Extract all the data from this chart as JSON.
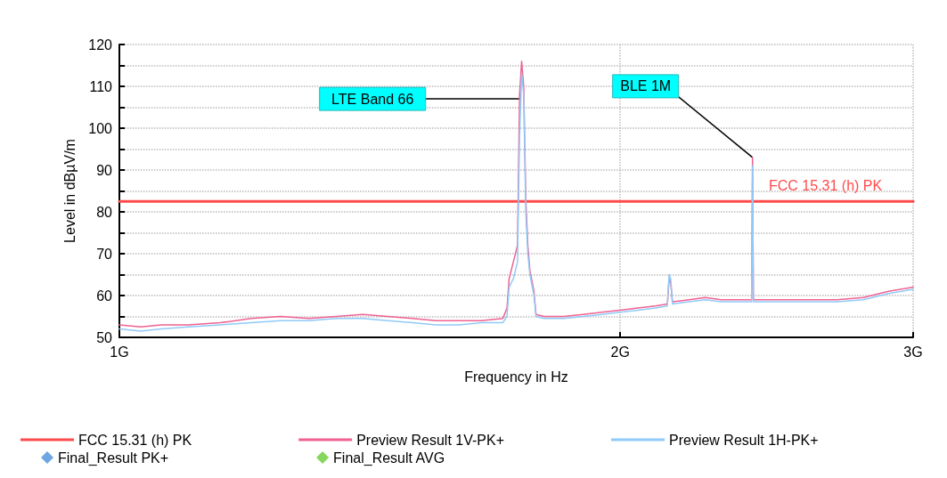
{
  "chart_data": {
    "type": "line",
    "xlabel": "Frequency in Hz",
    "ylabel": "Level in dBµV/m",
    "xlim": [
      1,
      3
    ],
    "xticks": [
      {
        "value": 1,
        "label": "1G"
      },
      {
        "value": 2,
        "label": "2G"
      },
      {
        "value": 3,
        "label": "3G"
      }
    ],
    "ylim": [
      50,
      120
    ],
    "yticks": [
      50,
      {
        "value": 55,
        "label": null
      },
      60,
      {
        "value": 65,
        "label": null
      },
      70,
      {
        "value": 75,
        "label": null
      },
      80,
      {
        "value": 85,
        "label": null
      },
      90,
      {
        "value": 95,
        "label": null
      },
      100,
      {
        "value": 105,
        "label": null
      },
      110,
      {
        "value": 115,
        "label": null
      },
      120
    ],
    "log": "x",
    "grid": true,
    "legend": "bottom",
    "line_style": "solid",
    "annotations": [
      {
        "text": "LTE Band 66",
        "x": 1.74,
        "y": 107
      },
      {
        "text": "BLE 1M",
        "x": 2.402,
        "y": 93
      }
    ],
    "series": [
      {
        "name": "FCC 15.31 (h) PK",
        "color": "#ff4b4b",
        "x": [
          1,
          3
        ],
        "values": [
          82.5,
          82.5
        ]
      },
      {
        "name": "Preview Result 1V-PK+",
        "color": "#f06292",
        "x": [
          1.0,
          1.03,
          1.06,
          1.1,
          1.15,
          1.2,
          1.25,
          1.3,
          1.35,
          1.4,
          1.45,
          1.5,
          1.55,
          1.6,
          1.65,
          1.7,
          1.71,
          1.715,
          1.725,
          1.735,
          1.74,
          1.745,
          1.75,
          1.755,
          1.76,
          1.765,
          1.775,
          1.78,
          1.8,
          1.85,
          1.9,
          1.95,
          2.0,
          2.05,
          2.1,
          2.135,
          2.14,
          2.145,
          2.15,
          2.2,
          2.25,
          2.3,
          2.35,
          2.399,
          2.402,
          2.405,
          2.45,
          2.5,
          2.6,
          2.7,
          2.8,
          2.9,
          3.0
        ],
        "values": [
          53,
          52.5,
          53,
          53,
          53.5,
          54.5,
          55,
          54.5,
          55,
          55.5,
          55,
          54.5,
          54,
          54,
          54,
          54.5,
          57,
          64,
          68,
          72,
          108,
          116,
          110,
          83,
          72,
          66,
          61,
          55.5,
          55,
          55,
          55.5,
          56,
          56.5,
          57,
          57.5,
          58,
          64,
          63,
          58.5,
          59,
          59.5,
          59,
          59,
          59,
          93,
          59,
          59,
          59,
          59,
          59,
          59.5,
          61,
          62
        ]
      },
      {
        "name": "Preview Result 1H-PK+",
        "color": "#90caf9",
        "x": [
          1.0,
          1.03,
          1.06,
          1.1,
          1.15,
          1.2,
          1.25,
          1.3,
          1.35,
          1.4,
          1.45,
          1.5,
          1.55,
          1.6,
          1.65,
          1.7,
          1.71,
          1.715,
          1.725,
          1.735,
          1.74,
          1.745,
          1.75,
          1.755,
          1.76,
          1.765,
          1.775,
          1.78,
          1.8,
          1.85,
          1.9,
          1.95,
          2.0,
          2.05,
          2.1,
          2.135,
          2.14,
          2.145,
          2.15,
          2.2,
          2.25,
          2.3,
          2.35,
          2.399,
          2.402,
          2.405,
          2.45,
          2.5,
          2.6,
          2.7,
          2.8,
          2.9,
          3.0
        ],
        "values": [
          52,
          51.5,
          52,
          52.5,
          53,
          53.5,
          54,
          54,
          54.5,
          54.5,
          54,
          53.5,
          53,
          53,
          53.5,
          53.5,
          55,
          62,
          64,
          68,
          98,
          113,
          108,
          80,
          70,
          65,
          60,
          55,
          54.5,
          54.5,
          55,
          55.5,
          56,
          56.5,
          57,
          57.5,
          65,
          64,
          58,
          58.5,
          59,
          58.5,
          58.5,
          58.5,
          91,
          58.5,
          58.5,
          58.5,
          58.5,
          58.5,
          59,
          60.5,
          61.5
        ]
      },
      {
        "name": "Final_Result PK+",
        "type": "scatter",
        "marker": "diamond",
        "color": "#4a90d9"
      },
      {
        "name": "Final_Result AVG",
        "type": "scatter",
        "marker": "diamond",
        "color": "#66cc33"
      }
    ]
  }
}
